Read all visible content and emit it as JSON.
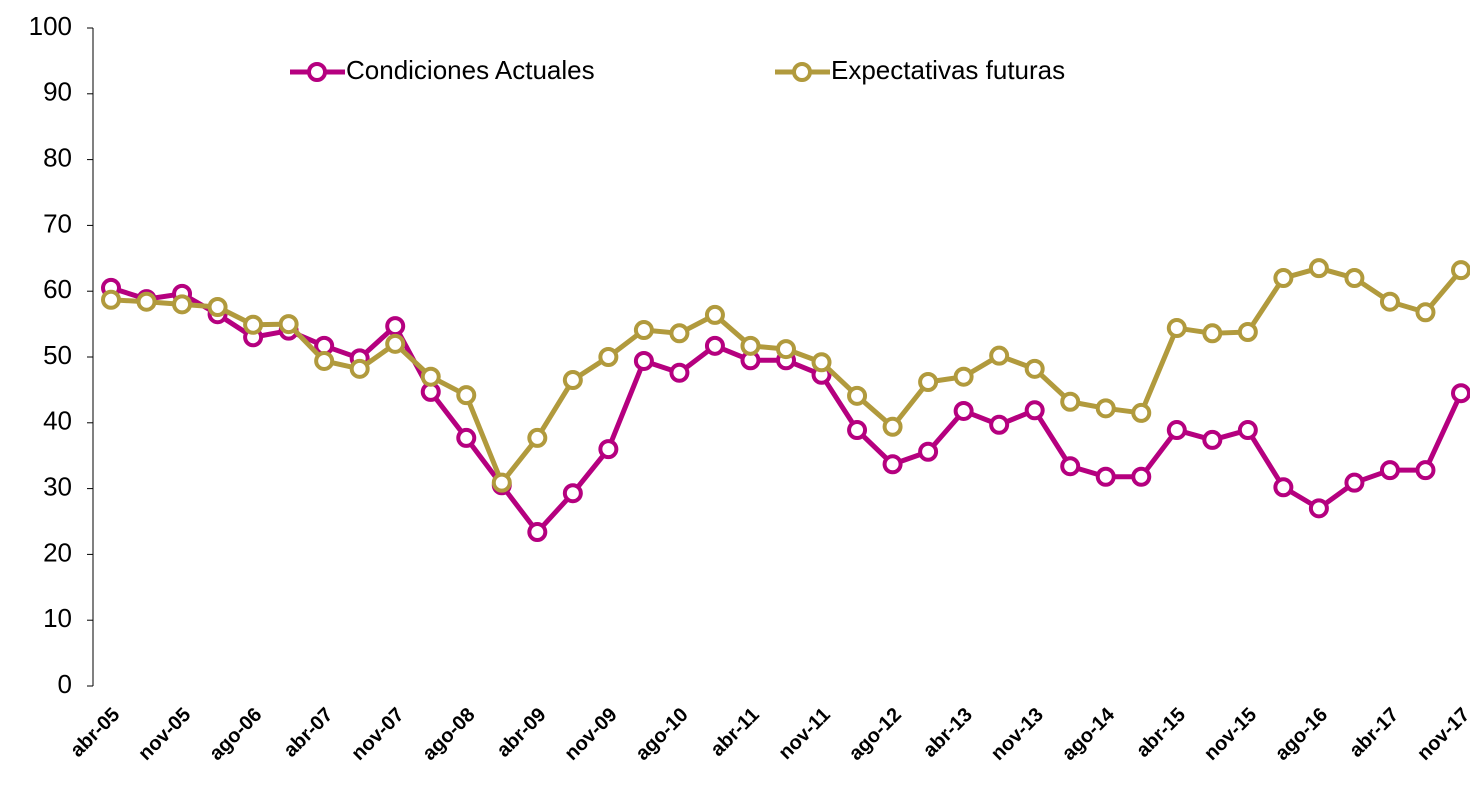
{
  "chart_data": {
    "type": "line",
    "categories": [
      "abr-05",
      null,
      "nov-05",
      null,
      "ago-06",
      null,
      "abr-07",
      null,
      "nov-07",
      null,
      "ago-08",
      null,
      "abr-09",
      null,
      "nov-09",
      null,
      "ago-10",
      null,
      "abr-11",
      null,
      "nov-11",
      null,
      "ago-12",
      null,
      "abr-13",
      null,
      "nov-13",
      null,
      "ago-14",
      null,
      "abr-15",
      null,
      "nov-15",
      null,
      "ago-16",
      null,
      "abr-17",
      null,
      "nov-17"
    ],
    "series": [
      {
        "name": "Condiciones Actuales",
        "color": "#b5007f",
        "values": [
          60.5,
          58.8,
          59.6,
          56.5,
          53.0,
          54.0,
          51.7,
          49.8,
          54.7,
          44.7,
          37.7,
          30.5,
          23.4,
          29.3,
          36.0,
          49.4,
          47.6,
          51.7,
          49.5,
          49.5,
          47.3,
          38.9,
          33.7,
          35.6,
          41.8,
          39.7,
          41.9,
          33.4,
          31.8,
          31.8,
          38.9,
          37.4,
          38.9,
          30.2,
          27.0,
          30.9,
          32.8,
          32.8,
          44.5
        ]
      },
      {
        "name": "Expectativas futuras",
        "color": "#b19a3d",
        "values": [
          58.7,
          58.4,
          58.0,
          57.6,
          54.9,
          55.0,
          49.4,
          48.2,
          52.0,
          47.0,
          44.2,
          30.9,
          37.7,
          46.5,
          50.0,
          54.1,
          53.6,
          56.4,
          51.7,
          51.2,
          49.2,
          44.1,
          39.4,
          46.2,
          47.0,
          50.2,
          48.2,
          43.2,
          42.2,
          41.5,
          54.4,
          53.6,
          53.8,
          62.0,
          63.5,
          62.0,
          58.4,
          56.8,
          63.2
        ]
      }
    ],
    "ylim": [
      0,
      100
    ],
    "yticks": [
      0,
      10,
      20,
      30,
      40,
      50,
      60,
      70,
      80,
      90,
      100
    ]
  }
}
